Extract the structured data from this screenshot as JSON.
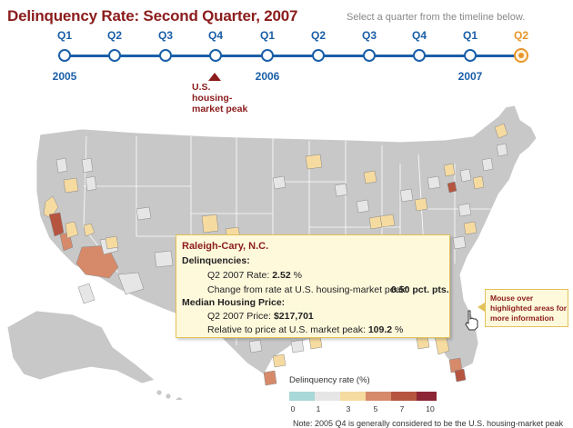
{
  "header": {
    "title": "Delinquency Rate: Second Quarter, 2007",
    "instruction": "Select a  quarter from the timeline below."
  },
  "timeline": {
    "quarters": [
      "Q1",
      "Q2",
      "Q3",
      "Q4",
      "Q1",
      "Q2",
      "Q3",
      "Q4",
      "Q1",
      "Q2"
    ],
    "years": [
      "2005",
      "2006",
      "2007"
    ],
    "selected_index": 9,
    "peak_label": "U.S. housing-market peak",
    "colors": {
      "timeline": "#1a5fa8",
      "selected": "#e8962a",
      "peak": "#8b1c1c"
    }
  },
  "tooltip": {
    "city": "Raleigh-Cary, N.C.",
    "delinquencies_heading": "Delinquencies:",
    "rate_label": "Q2 2007 Rate:",
    "rate_value": "2.52",
    "rate_unit": "%",
    "change_label": "Change from rate at U.S. housing-market peak:",
    "change_value": "0.50 pct. pts.",
    "price_heading": "Median Housing Price:",
    "price_label": "Q2 2007 Price:",
    "price_value": "$217,701",
    "relative_label": "Relative to price at U.S. market peak:",
    "relative_value": "109.2",
    "relative_unit": "%"
  },
  "callout": {
    "text": "Mouse over highlighted areas for more information"
  },
  "legend": {
    "title": "Delinquency rate (%)",
    "ticks": [
      "0",
      "1",
      "3",
      "5",
      "7",
      "10"
    ],
    "colors": [
      "#a8d8d8",
      "#e6e6e6",
      "#f6dba0",
      "#d68a6a",
      "#b55540",
      "#8b2535"
    ]
  },
  "note": "Note: 2005 Q4 is generally considered to be the U.S. housing-market peak"
}
